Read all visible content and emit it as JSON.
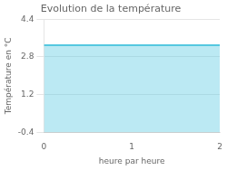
{
  "chart_data": {
    "type": "area",
    "title": "Evolution de la température",
    "xlabel": "heure par heure",
    "ylabel": "Température en °C",
    "x": [
      0,
      2
    ],
    "values": [
      3.3,
      3.3
    ],
    "color": "#55c8e0",
    "xlim": [
      0,
      2
    ],
    "ylim": [
      -0.4,
      4.4
    ],
    "xticks": [
      0,
      1,
      2
    ],
    "yticks": [
      -0.4,
      1.2,
      2.8,
      4.4
    ],
    "grid": "y"
  }
}
